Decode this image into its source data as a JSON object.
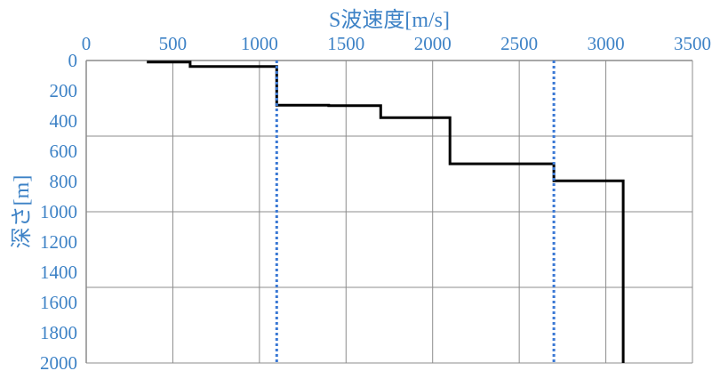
{
  "chart_data": {
    "type": "line",
    "xlabel": "S波速度[m/s]",
    "ylabel": "深さ[m]",
    "x_axis_position": "top",
    "y_axis_inverted": true,
    "xlim": [
      0,
      3500
    ],
    "ylim": [
      0,
      2000
    ],
    "x_ticks": [
      0,
      500,
      1000,
      1500,
      2000,
      2500,
      3000,
      3500
    ],
    "y_ticks": [
      0,
      200,
      400,
      600,
      800,
      1000,
      1200,
      1400,
      1600,
      1800,
      2000
    ],
    "x_grid": [
      0,
      500,
      1000,
      1500,
      2000,
      2500,
      3000,
      3500
    ],
    "y_grid": [
      0,
      500,
      1000,
      1500,
      2000
    ],
    "series": [
      {
        "style": "solid",
        "color": "#000000",
        "points": [
          [
            350,
            10
          ],
          [
            600,
            10
          ],
          [
            600,
            40
          ],
          [
            1100,
            40
          ],
          [
            1100,
            295
          ],
          [
            1400,
            295
          ],
          [
            1400,
            298
          ],
          [
            1700,
            298
          ],
          [
            1700,
            378
          ],
          [
            2100,
            378
          ],
          [
            2100,
            683
          ],
          [
            2700,
            683
          ],
          [
            2700,
            795
          ],
          [
            3100,
            795
          ],
          [
            3100,
            2000
          ]
        ]
      },
      {
        "style": "dotted",
        "color": "#3a78d4",
        "points": [
          [
            1100,
            0
          ],
          [
            1100,
            2000
          ]
        ]
      },
      {
        "style": "dotted",
        "color": "#3a78d4",
        "points": [
          [
            2700,
            0
          ],
          [
            2700,
            2000
          ]
        ]
      }
    ]
  }
}
